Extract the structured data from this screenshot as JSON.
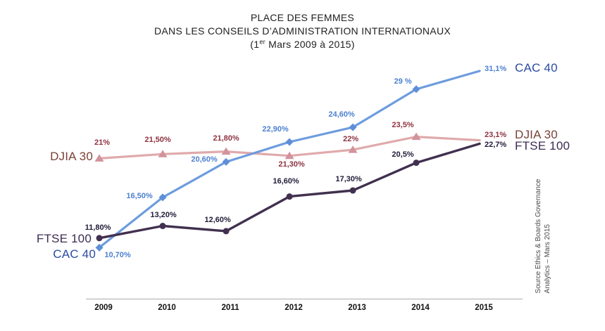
{
  "title": {
    "line1": "PLACE DES FEMMES",
    "line2": "DANS LES CONSEILS D’ADMINISTRATION INTERNATIONAUX",
    "line3_pre": "(1",
    "line3_sup": "er",
    "line3_post": " Mars 2009 à 2015)"
  },
  "source_note": {
    "line1": "Source Ethics & Boards Governance",
    "line2": "Analytics – Mars 2015"
  },
  "chart_data": {
    "type": "line",
    "title": "PLACE DES FEMMES DANS LES CONSEILS D’ADMINISTRATION INTERNATIONAUX (1er Mars 2009 à 2015)",
    "x": [
      "2009",
      "2010",
      "2011",
      "2012",
      "2013",
      "2014",
      "2015"
    ],
    "series": [
      {
        "name": "CAC 40",
        "marker": "diamond",
        "line_color": "#6D9CDE",
        "marker_color": "#5E8FD8",
        "value_label_color": "#4D80D1",
        "name_color": "#2C4BA3",
        "values": [
          10.7,
          16.5,
          20.6,
          22.9,
          24.6,
          29.0,
          31.1
        ],
        "value_labels": [
          "10,70%",
          "16,50%",
          "20,60%",
          "22,90%",
          "24,60%",
          "29 %",
          "31,1%"
        ]
      },
      {
        "name": "DJIA 30",
        "marker": "triangle",
        "line_color": "#E0AAAC",
        "marker_color": "#D2939C",
        "value_label_color": "#8E3340",
        "name_color": "#7A4238",
        "values": [
          21.0,
          21.5,
          21.8,
          21.3,
          22.0,
          23.5,
          23.1
        ],
        "value_labels": [
          "21%",
          "21,50%",
          "21,80%",
          "21,30%",
          "22%",
          "23,5%",
          "23,1%"
        ]
      },
      {
        "name": "FTSE 100",
        "marker": "circle",
        "line_color": "#41304F",
        "marker_color": "#41304F",
        "value_label_color": "#211B38",
        "name_color": "#3C2C52",
        "values": [
          11.8,
          13.2,
          12.6,
          16.6,
          17.3,
          20.5,
          22.7
        ],
        "value_labels": [
          "11,80%",
          "13,20%",
          "12,60%",
          "16,60%",
          "17,30%",
          "20,5%",
          "22,7%"
        ]
      }
    ],
    "ylim": [
      4.8,
      32.4
    ],
    "xlabel": "",
    "ylabel": "",
    "grid": false,
    "legend": "series-name-labels-at-line-start-and-end",
    "axis_color": "#ABABAB",
    "tick_label_color": "#111111"
  }
}
